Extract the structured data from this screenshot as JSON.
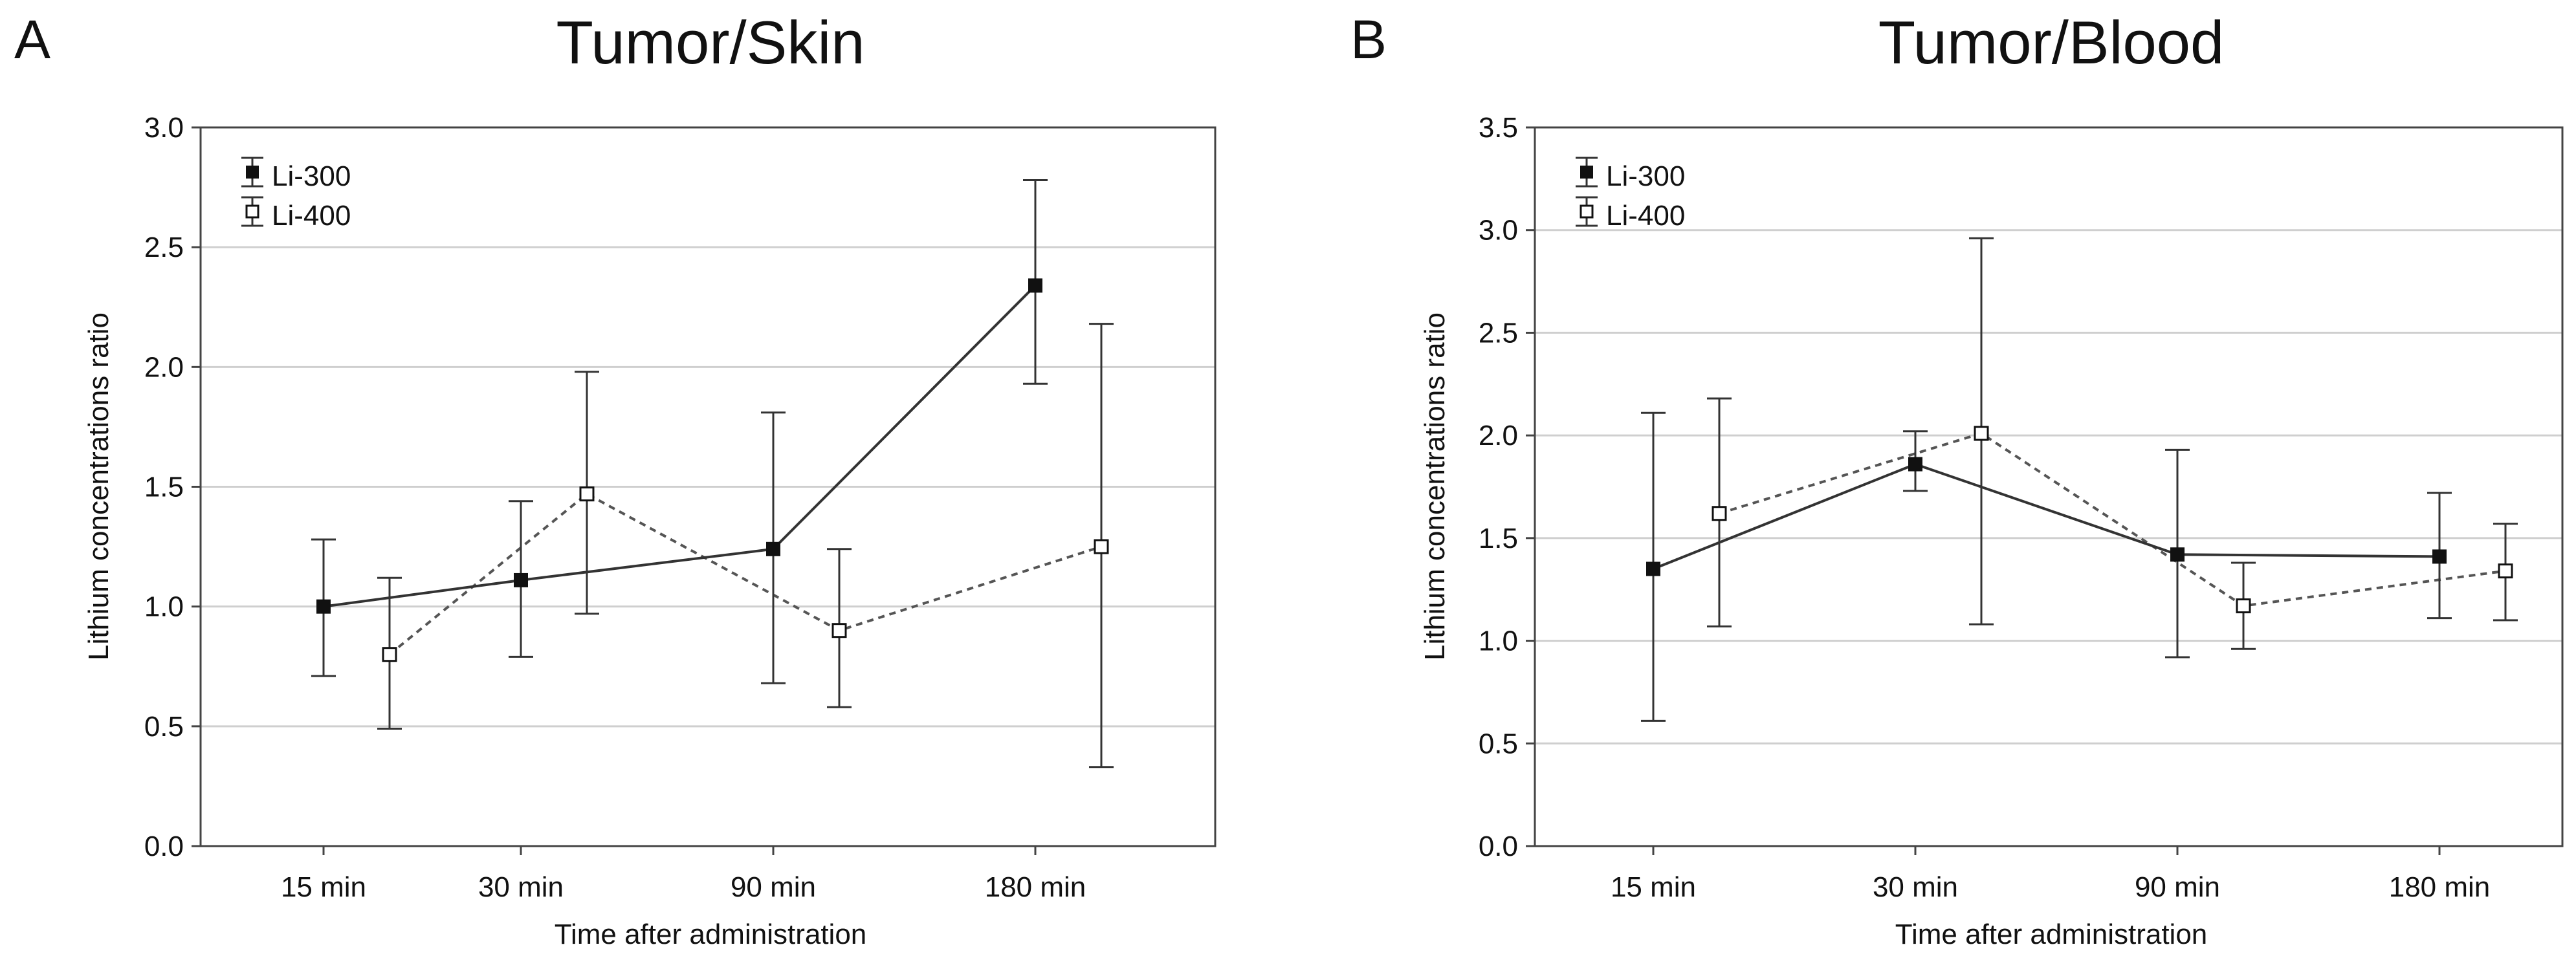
{
  "chart_data": [
    {
      "type": "line",
      "panel_letter": "A",
      "title": "Tumor/Skin",
      "xlabel": "Time after administration",
      "ylabel": "Lithium concentrations ratio",
      "categories": [
        "15 min",
        "30 min",
        "90 min",
        "180 min"
      ],
      "ylim": [
        0,
        3.0
      ],
      "yticks": [
        "0.0",
        "0.5",
        "1.0",
        "1.5",
        "2.0",
        "2.5",
        "3.0"
      ],
      "grid": "horizontal",
      "legend_position": "top-left",
      "series": [
        {
          "name": "Li-300",
          "marker": "filled-square",
          "line": "solid",
          "values": [
            1.0,
            1.11,
            1.24,
            2.34
          ],
          "error_low": [
            0.71,
            0.79,
            0.68,
            1.93
          ],
          "error_high": [
            1.28,
            1.44,
            1.81,
            2.78
          ]
        },
        {
          "name": "Li-400",
          "marker": "open-square",
          "line": "dotted",
          "values": [
            0.8,
            1.47,
            0.9,
            1.25
          ],
          "error_low": [
            0.49,
            0.97,
            0.58,
            0.33
          ],
          "error_high": [
            1.12,
            1.98,
            1.24,
            2.18
          ]
        }
      ]
    },
    {
      "type": "line",
      "panel_letter": "B",
      "title": "Tumor/Blood",
      "xlabel": "Time after administration",
      "ylabel": "Lithium concentrations ratio",
      "categories": [
        "15 min",
        "30 min",
        "90 min",
        "180 min"
      ],
      "ylim": [
        0,
        3.5
      ],
      "yticks": [
        "0.0",
        "0.5",
        "1.0",
        "1.5",
        "2.0",
        "2.5",
        "3.0",
        "3.5"
      ],
      "grid": "horizontal",
      "legend_position": "top-left",
      "series": [
        {
          "name": "Li-300",
          "marker": "filled-square",
          "line": "solid",
          "values": [
            1.35,
            1.86,
            1.42,
            1.41
          ],
          "error_low": [
            0.61,
            1.73,
            0.92,
            1.11
          ],
          "error_high": [
            2.11,
            2.02,
            1.93,
            1.72
          ]
        },
        {
          "name": "Li-400",
          "marker": "open-square",
          "line": "dotted",
          "values": [
            1.62,
            2.01,
            1.17,
            1.34
          ],
          "error_low": [
            1.07,
            1.08,
            0.96,
            1.1
          ],
          "error_high": [
            2.18,
            2.96,
            1.38,
            1.57
          ]
        }
      ]
    }
  ]
}
